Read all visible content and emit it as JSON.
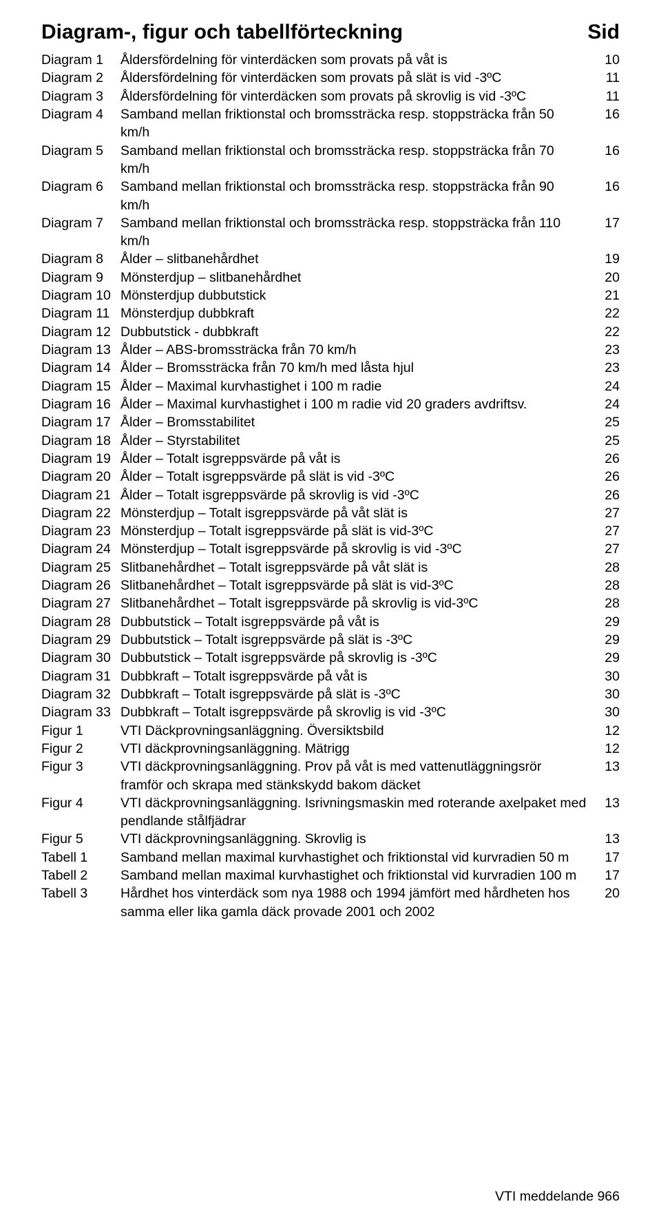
{
  "title": "Diagram-, figur och tabellförteckning",
  "page_col_label": "Sid",
  "footer": "VTI meddelande 966",
  "entries": [
    {
      "label": "Diagram 1",
      "desc": "Åldersfördelning för vinterdäcken som provats på våt is",
      "num": "10"
    },
    {
      "label": "Diagram 2",
      "desc": "Åldersfördelning för vinterdäcken som provats på slät is vid -3ºC",
      "num": "11"
    },
    {
      "label": "Diagram 3",
      "desc": "Åldersfördelning för vinterdäcken som provats på skrovlig is vid -3ºC",
      "num": "11"
    },
    {
      "label": "Diagram 4",
      "desc": "Samband mellan friktionstal och bromssträcka resp. stoppsträcka från 50 km/h",
      "num": "16"
    },
    {
      "label": "Diagram 5",
      "desc": "Samband mellan friktionstal och bromssträcka resp. stoppsträcka från 70 km/h",
      "num": "16"
    },
    {
      "label": "Diagram 6",
      "desc": "Samband mellan friktionstal och bromssträcka resp. stoppsträcka från 90 km/h",
      "num": "16"
    },
    {
      "label": "Diagram 7",
      "desc": "Samband mellan friktionstal och bromssträcka resp. stoppsträcka från 110 km/h",
      "num": "17"
    },
    {
      "label": "Diagram 8",
      "desc": "Ålder – slitbanehårdhet",
      "num": "19"
    },
    {
      "label": "Diagram 9",
      "desc": "Mönsterdjup – slitbanehårdhet",
      "num": "20"
    },
    {
      "label": "Diagram 10",
      "desc": "Mönsterdjup dubbutstick",
      "num": "21"
    },
    {
      "label": "Diagram 11",
      "desc": "Mönsterdjup dubbkraft",
      "num": "22"
    },
    {
      "label": "Diagram 12",
      "desc": "Dubbutstick - dubbkraft",
      "num": "22"
    },
    {
      "label": "Diagram 13",
      "desc": "Ålder – ABS-bromssträcka från 70 km/h",
      "num": "23"
    },
    {
      "label": "Diagram 14",
      "desc": "Ålder – Bromssträcka från 70 km/h med låsta hjul",
      "num": "23"
    },
    {
      "label": "Diagram 15",
      "desc": "Ålder – Maximal kurvhastighet i 100 m radie",
      "num": "24"
    },
    {
      "label": "Diagram 16",
      "desc": "Ålder – Maximal kurvhastighet i 100 m radie vid 20 graders avdriftsv.",
      "num": "24"
    },
    {
      "label": "Diagram 17",
      "desc": "Ålder – Bromsstabilitet",
      "num": "25"
    },
    {
      "label": "Diagram 18",
      "desc": "Ålder – Styrstabilitet",
      "num": "25"
    },
    {
      "label": "Diagram 19",
      "desc": "Ålder – Totalt isgreppsvärde på våt is",
      "num": "26"
    },
    {
      "label": "Diagram 20",
      "desc": "Ålder – Totalt isgreppsvärde på slät is vid -3ºC",
      "num": "26"
    },
    {
      "label": "Diagram 21",
      "desc": "Ålder – Totalt isgreppsvärde på skrovlig is vid -3ºC",
      "num": "26"
    },
    {
      "label": "Diagram 22",
      "desc": "Mönsterdjup – Totalt isgreppsvärde på våt slät is",
      "num": "27"
    },
    {
      "label": "Diagram 23",
      "desc": "Mönsterdjup – Totalt isgreppsvärde på slät is vid-3ºC",
      "num": "27"
    },
    {
      "label": "Diagram 24",
      "desc": "Mönsterdjup – Totalt isgreppsvärde på skrovlig is vid -3ºC",
      "num": "27"
    },
    {
      "label": "Diagram 25",
      "desc": "Slitbanehårdhet – Totalt isgreppsvärde på våt slät is",
      "num": "28"
    },
    {
      "label": "Diagram 26",
      "desc": "Slitbanehårdhet – Totalt isgreppsvärde på slät is vid-3ºC",
      "num": "28"
    },
    {
      "label": "Diagram 27",
      "desc": "Slitbanehårdhet – Totalt isgreppsvärde på skrovlig is vid-3ºC",
      "num": "28"
    },
    {
      "label": "Diagram 28",
      "desc": "Dubbutstick – Totalt isgreppsvärde på våt is",
      "num": "29"
    },
    {
      "label": "Diagram 29",
      "desc": "Dubbutstick – Totalt isgreppsvärde på slät is -3ºC",
      "num": "29"
    },
    {
      "label": "Diagram 30",
      "desc": "Dubbutstick – Totalt isgreppsvärde på skrovlig is -3ºC",
      "num": "29"
    },
    {
      "label": "Diagram 31",
      "desc": "Dubbkraft – Totalt isgreppsvärde på våt is",
      "num": "30"
    },
    {
      "label": "Diagram 32",
      "desc": "Dubbkraft – Totalt isgreppsvärde på slät is -3ºC",
      "num": "30"
    },
    {
      "label": "Diagram 33",
      "desc": "Dubbkraft – Totalt isgreppsvärde på skrovlig is vid -3ºC",
      "num": "30"
    },
    {
      "label": "Figur 1",
      "desc": "VTI Däckprovningsanläggning. Översiktsbild",
      "num": "12"
    },
    {
      "label": "Figur 2",
      "desc": "VTI däckprovningsanläggning. Mätrigg",
      "num": "12"
    },
    {
      "label": "Figur 3",
      "desc": "VTI däckprovningsanläggning. Prov på våt is med vattenutläggningsrör framför och skrapa med stänkskydd bakom däcket",
      "num": "13"
    },
    {
      "label": "Figur 4",
      "desc": "VTI däckprovningsanläggning. Isrivningsmaskin med roterande axelpaket med pendlande stålfjädrar",
      "num": "13"
    },
    {
      "label": "Figur 5",
      "desc": "VTI däckprovningsanläggning. Skrovlig is",
      "num": "13"
    },
    {
      "label": "Tabell 1",
      "desc": "Samband mellan maximal kurvhastighet och friktionstal vid kurvradien 50 m",
      "num": "17"
    },
    {
      "label": "Tabell 2",
      "desc": "Samband mellan maximal kurvhastighet och friktionstal vid kurvradien 100 m",
      "num": "17"
    },
    {
      "label": "Tabell 3",
      "desc": "Hårdhet hos vinterdäck som nya 1988 och 1994 jämfört med hårdheten hos samma eller lika gamla däck provade 2001 och 2002",
      "num": "20"
    }
  ]
}
